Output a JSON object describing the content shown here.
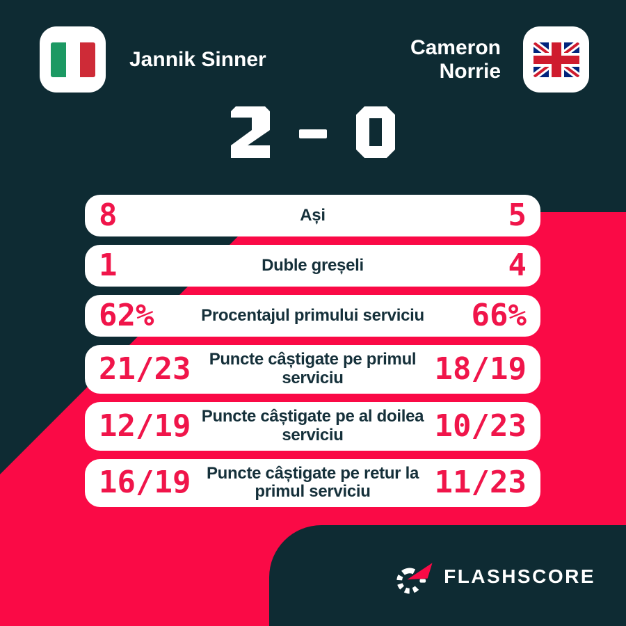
{
  "header": {
    "home": {
      "name": "Jannik Sinner",
      "flag_icon": "italy-flag"
    },
    "away": {
      "name": "Cameron Norrie",
      "flag_icon": "uk-flag"
    }
  },
  "score": {
    "home": "2",
    "separator": "-",
    "away": "0"
  },
  "stats": [
    {
      "home": "8",
      "label": "Ași",
      "away": "5"
    },
    {
      "home": "1",
      "label": "Duble greșeli",
      "away": "4"
    },
    {
      "home": "62%",
      "label": "Procentajul primului serviciu",
      "away": "66%"
    },
    {
      "home": "21/23",
      "label": "Puncte câștigate pe primul serviciu",
      "away": "18/19"
    },
    {
      "home": "12/19",
      "label": "Puncte câștigate pe al doilea serviciu",
      "away": "10/23"
    },
    {
      "home": "16/19",
      "label": "Puncte câștigate pe retur la primul serviciu",
      "away": "11/23"
    }
  ],
  "brand": {
    "wordmark": "FLASHSCORE",
    "icon": "flashscore-spinner-icon"
  },
  "colors": {
    "background": "#0e2b33",
    "accent_pink": "#fa0a46",
    "stat_value_red": "#f0154a",
    "label_navy": "#15303a",
    "card_white": "#ffffff"
  },
  "chart_data": {
    "type": "table",
    "title": "Jannik Sinner vs Cameron Norrie — statistici meci",
    "score": "2 - 0",
    "categories": [
      "Ași",
      "Duble greșeli",
      "Procentajul primului serviciu",
      "Puncte câștigate pe primul serviciu",
      "Puncte câștigate pe al doilea serviciu",
      "Puncte câștigate pe retur la primul serviciu"
    ],
    "series": [
      {
        "name": "Jannik Sinner",
        "values": [
          "8",
          "1",
          "62%",
          "21/23",
          "12/19",
          "16/19"
        ]
      },
      {
        "name": "Cameron Norrie",
        "values": [
          "5",
          "4",
          "66%",
          "18/19",
          "10/23",
          "11/23"
        ]
      }
    ],
    "legend_position": "top",
    "grid": false
  }
}
